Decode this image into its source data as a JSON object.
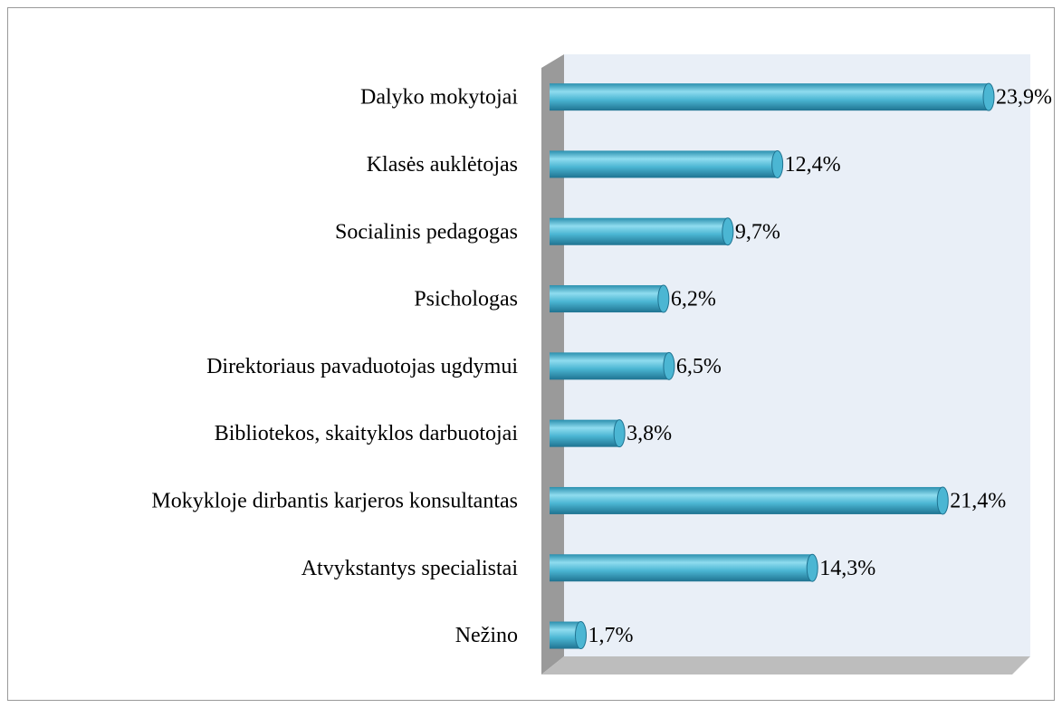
{
  "chart_data": {
    "type": "bar",
    "orientation": "horizontal",
    "categories": [
      "Dalyko mokytojai",
      "Klasės auklėtojas",
      "Socialinis pedagogas",
      "Psichologas",
      "Direktoriaus pavaduotojas ugdymui",
      "Bibliotekos, skaityklos darbuotojai",
      "Mokykloje dirbantis karjeros konsultantas",
      "Atvykstantys specialistai",
      "Nežino"
    ],
    "values": [
      23.9,
      12.4,
      9.7,
      6.2,
      6.5,
      3.8,
      21.4,
      14.3,
      1.7
    ],
    "value_labels": [
      "23,9%",
      "12,4%",
      "9,7%",
      "6,2%",
      "6,5%",
      "3,8%",
      "21,4%",
      "14,3%",
      "1,7%"
    ],
    "color": "#4bb6d3"
  }
}
